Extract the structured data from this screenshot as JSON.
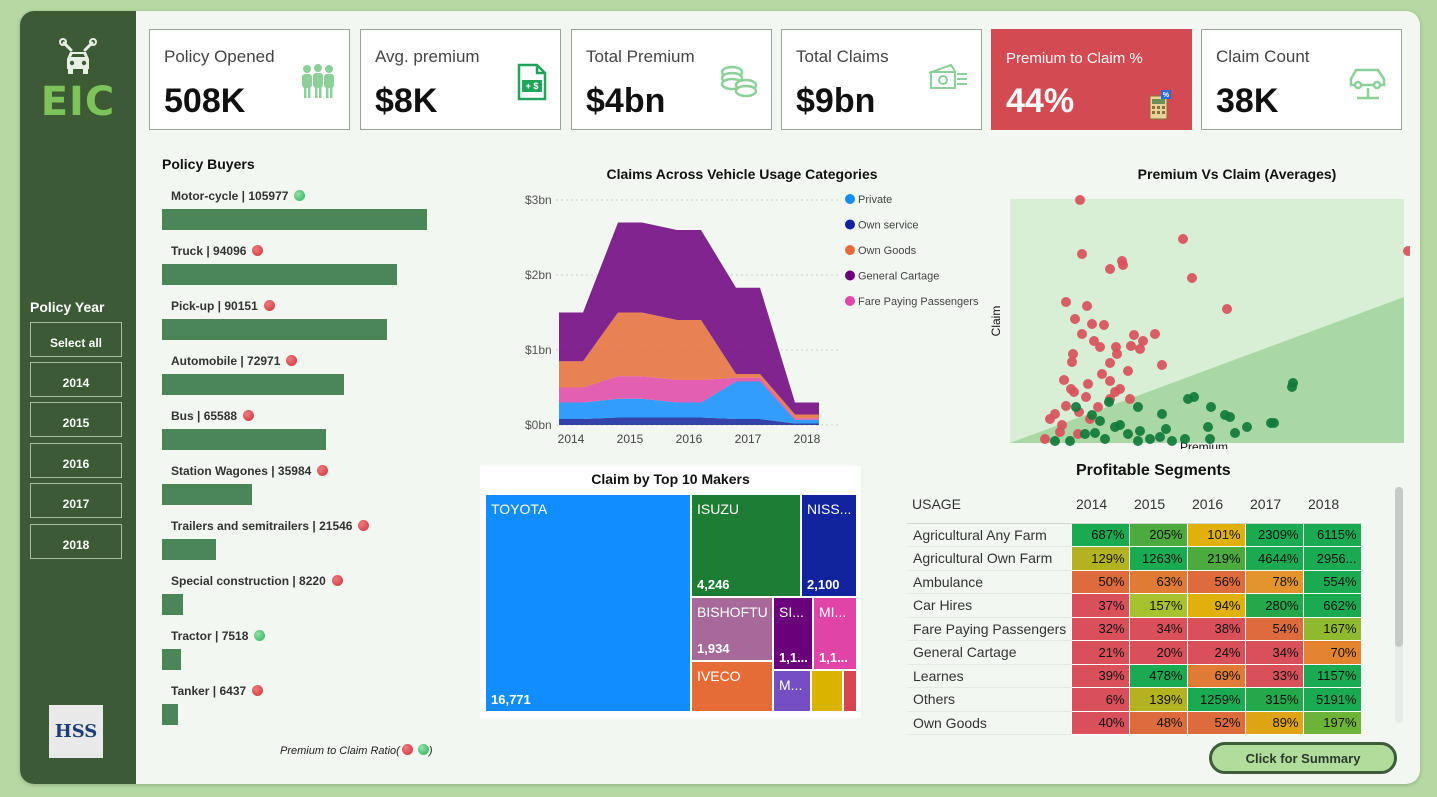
{
  "brand": {
    "logo_text": "EIC",
    "partner": "HSS"
  },
  "kpis": [
    {
      "title": "Policy Opened",
      "value": "508K",
      "icon": "people-icon"
    },
    {
      "title": "Avg. premium",
      "value": "$8K",
      "icon": "document-dollar-icon"
    },
    {
      "title": "Total Premium",
      "value": "$4bn",
      "icon": "coins-icon"
    },
    {
      "title": "Total Claims",
      "value": "$9bn",
      "icon": "cash-icon"
    },
    {
      "title": "Premium to Claim %",
      "value": "44%",
      "icon": "calculator-icon"
    },
    {
      "title": "Claim Count",
      "value": "38K",
      "icon": "car-lift-icon"
    }
  ],
  "slicer": {
    "title": "Policy Year",
    "options": [
      "Select all",
      "2014",
      "2015",
      "2016",
      "2017",
      "2018"
    ]
  },
  "policy_buyers": {
    "title": "Policy Buyers",
    "footnote": "Premium to Claim Ratio(",
    "footnote_end": ")",
    "items": [
      {
        "label": "Motor-cycle | 105977",
        "value": 105977,
        "status": "green"
      },
      {
        "label": "Truck | 94096",
        "value": 94096,
        "status": "red"
      },
      {
        "label": "Pick-up | 90151",
        "value": 90151,
        "status": "red"
      },
      {
        "label": "Automobile | 72971",
        "value": 72971,
        "status": "red"
      },
      {
        "label": "Bus | 65588",
        "value": 65588,
        "status": "red"
      },
      {
        "label": "Station Wagones | 35984",
        "value": 35984,
        "status": "red"
      },
      {
        "label": "Trailers and semitrailers | 21546",
        "value": 21546,
        "status": "red"
      },
      {
        "label": "Special construction | 8220",
        "value": 8220,
        "status": "red"
      },
      {
        "label": "Tractor | 7518",
        "value": 7518,
        "status": "green"
      },
      {
        "label": "Tanker | 6437",
        "value": 6437,
        "status": "red"
      }
    ]
  },
  "chart_data": [
    {
      "type": "area",
      "title": "Claims Across Vehicle Usage Categories",
      "categories": [
        "2014",
        "2015",
        "2016",
        "2017",
        "2018"
      ],
      "y_ticks": [
        "$0bn",
        "$1bn",
        "$2bn",
        "$3bn"
      ],
      "ylim": [
        0,
        3
      ],
      "legend_position": "right",
      "series": [
        {
          "name": "Private",
          "color": "#118dff",
          "values": [
            0.22,
            0.25,
            0.2,
            0.5,
            0.05
          ]
        },
        {
          "name": "Own service",
          "color": "#12239e",
          "values": [
            0.08,
            0.1,
            0.1,
            0.08,
            0.02
          ]
        },
        {
          "name": "Own Goods",
          "color": "#e66c37",
          "values": [
            0.35,
            0.85,
            0.8,
            0.05,
            0.05
          ]
        },
        {
          "name": "General Cartage",
          "color": "#6b007b",
          "values": [
            0.65,
            1.2,
            1.2,
            1.15,
            0.16
          ]
        },
        {
          "name": "Fare Paying Passengers",
          "color": "#e044a7",
          "values": [
            0.2,
            0.3,
            0.3,
            0.05,
            0.02
          ]
        }
      ]
    },
    {
      "type": "scatter",
      "title": "Premium Vs Claim (Averages)",
      "xlabel": "Premium",
      "ylabel": "Claim",
      "loss_color": "#d9505a",
      "profit_color": "#117a3c"
    }
  ],
  "treemap": {
    "title": "Claim by Top 10 Makers",
    "cells": [
      {
        "name": "TOYOTA",
        "value": "16,771",
        "color": "#118dff"
      },
      {
        "name": "ISUZU",
        "value": "4,246",
        "color": "#1e7d34"
      },
      {
        "name": "NISS...",
        "value": "2,100",
        "color": "#12239e"
      },
      {
        "name": "BISHOFTU",
        "value": "1,934",
        "color": "#a66999"
      },
      {
        "name": "SI...",
        "value": "1,1...",
        "color": "#6b007b"
      },
      {
        "name": "MI...",
        "value": "1,1...",
        "color": "#e044a7"
      },
      {
        "name": "IVECO",
        "value": "",
        "color": "#e66c37"
      },
      {
        "name": "M...",
        "value": "",
        "color": "#744ec2"
      },
      {
        "name": "",
        "value": "",
        "color": "#d9b300"
      },
      {
        "name": "",
        "value": "",
        "color": "#d64550"
      }
    ]
  },
  "segments": {
    "title": "Profitable Segments",
    "headers": [
      "USAGE",
      "2014",
      "2015",
      "2016",
      "2017",
      "2018"
    ],
    "rows": [
      {
        "usage": "Agricultural Any Farm",
        "cells": [
          [
            "687%",
            "#1aab52"
          ],
          [
            "205%",
            "#4caa3e"
          ],
          [
            "101%",
            "#dfb10a"
          ],
          [
            "2309%",
            "#1aab52"
          ],
          [
            "6115%",
            "#1aab52"
          ]
        ]
      },
      {
        "usage": "Agricultural Own Farm",
        "cells": [
          [
            "129%",
            "#b3b321"
          ],
          [
            "1263%",
            "#1aab52"
          ],
          [
            "219%",
            "#4caa3e"
          ],
          [
            "4644%",
            "#1aab52"
          ],
          [
            "2956...",
            "#1aab52"
          ]
        ]
      },
      {
        "usage": "Ambulance",
        "cells": [
          [
            "50%",
            "#dd6b3c"
          ],
          [
            "63%",
            "#e07b36"
          ],
          [
            "56%",
            "#dd6b3c"
          ],
          [
            "78%",
            "#e3932b"
          ],
          [
            "554%",
            "#1aab52"
          ]
        ]
      },
      {
        "usage": "Car Hires",
        "cells": [
          [
            "37%",
            "#d9505a"
          ],
          [
            "157%",
            "#a7c22f"
          ],
          [
            "94%",
            "#dfb10a"
          ],
          [
            "280%",
            "#24a84c"
          ],
          [
            "662%",
            "#1aab52"
          ]
        ]
      },
      {
        "usage": "Fare Paying Passengers",
        "cells": [
          [
            "32%",
            "#d9505a"
          ],
          [
            "34%",
            "#d9505a"
          ],
          [
            "38%",
            "#d9505a"
          ],
          [
            "54%",
            "#dd6b3c"
          ],
          [
            "167%",
            "#8fba2e"
          ]
        ]
      },
      {
        "usage": "General Cartage",
        "cells": [
          [
            "21%",
            "#d9505a"
          ],
          [
            "20%",
            "#d9505a"
          ],
          [
            "24%",
            "#d9505a"
          ],
          [
            "34%",
            "#d9505a"
          ],
          [
            "70%",
            "#e3832f"
          ]
        ]
      },
      {
        "usage": "Learnes",
        "cells": [
          [
            "39%",
            "#d9505a"
          ],
          [
            "478%",
            "#1aab52"
          ],
          [
            "69%",
            "#e07b36"
          ],
          [
            "33%",
            "#d9505a"
          ],
          [
            "1157%",
            "#1aab52"
          ]
        ]
      },
      {
        "usage": "Others",
        "cells": [
          [
            "6%",
            "#d9505a"
          ],
          [
            "139%",
            "#b3b321"
          ],
          [
            "1259%",
            "#1aab52"
          ],
          [
            "315%",
            "#24a84c"
          ],
          [
            "5191%",
            "#1aab52"
          ]
        ]
      },
      {
        "usage": "Own Goods",
        "cells": [
          [
            "40%",
            "#d9505a"
          ],
          [
            "48%",
            "#dd6b3c"
          ],
          [
            "52%",
            "#dd6b3c"
          ],
          [
            "89%",
            "#dfa414"
          ],
          [
            "197%",
            "#6db33a"
          ]
        ]
      }
    ]
  },
  "summary_button": "Click for Summary"
}
